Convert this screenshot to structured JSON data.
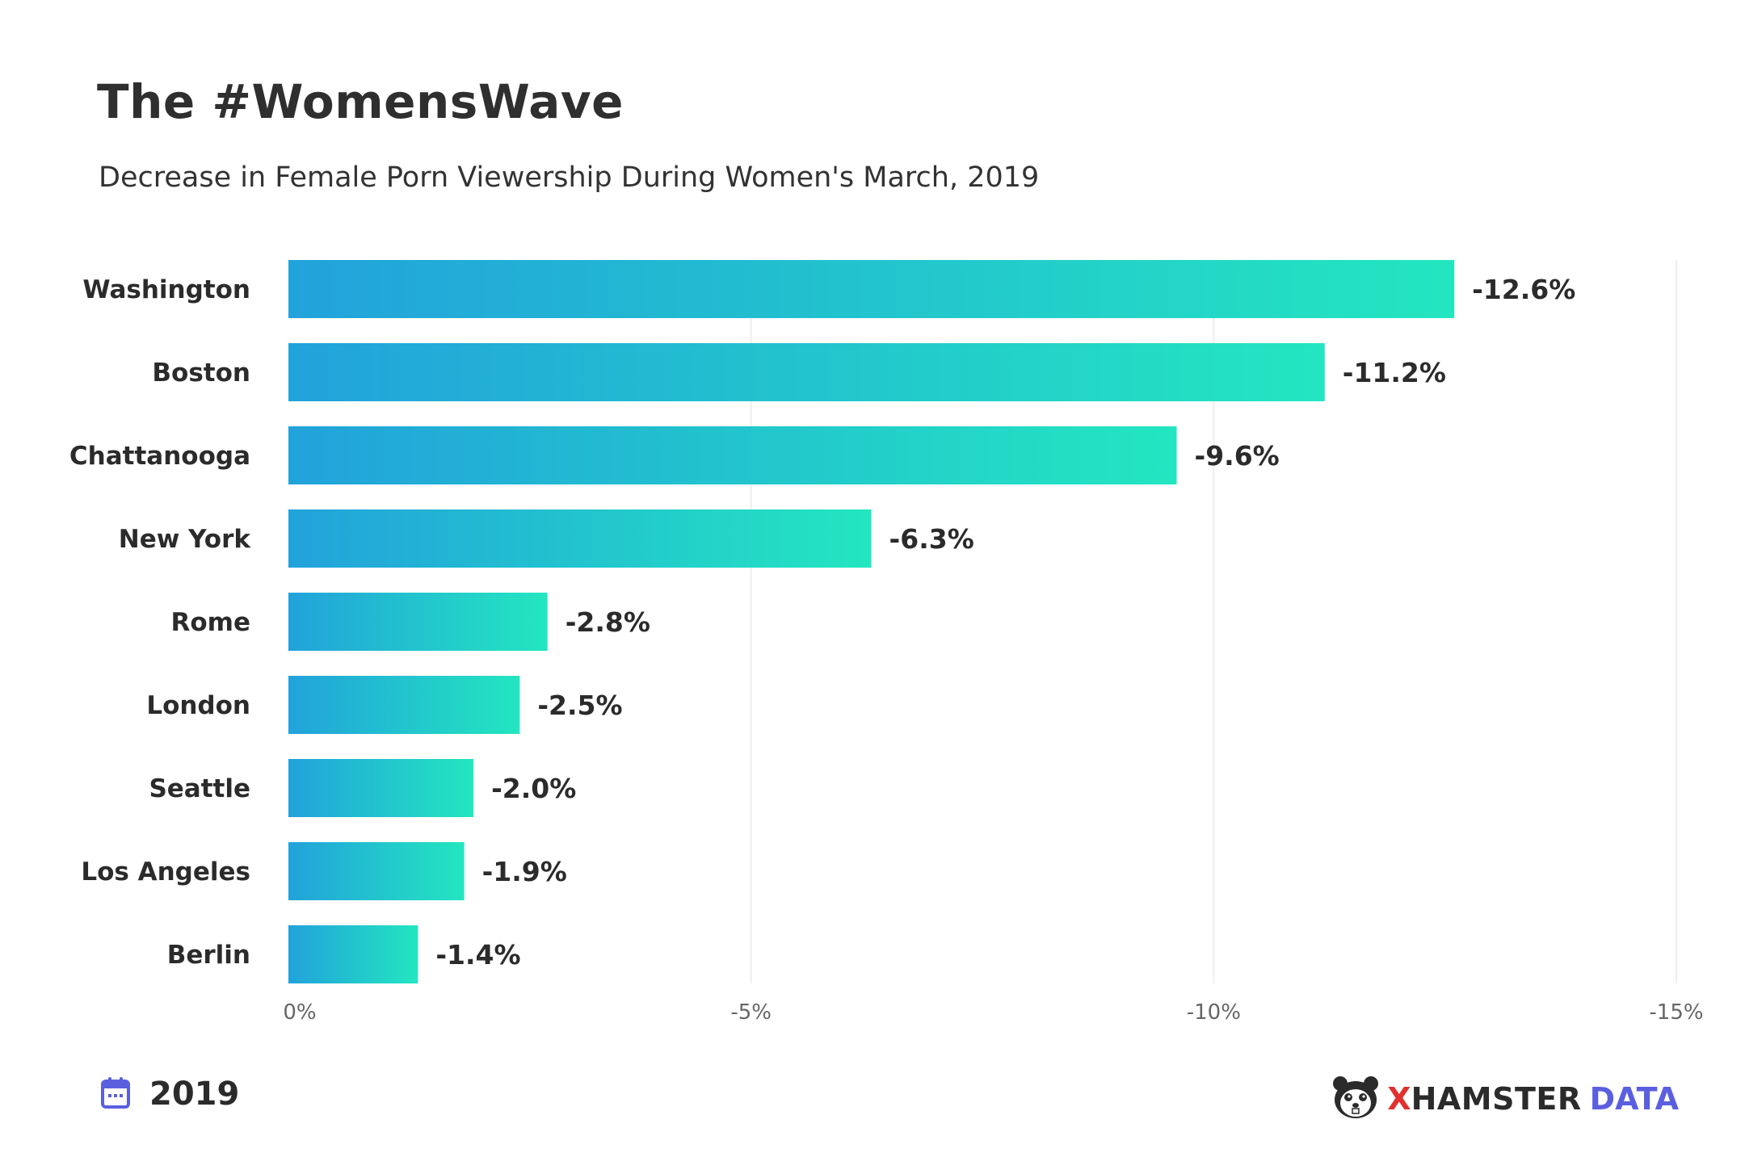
{
  "header": {
    "title": "The #WomensWave",
    "subtitle": "Decrease in Female Porn Viewership During Women's March, 2019"
  },
  "footer": {
    "year": "2019",
    "calendar_icon": "calendar-icon",
    "brand_x": "X",
    "brand_hamster": "HAMSTER",
    "brand_data": "DATA",
    "brand_logo_icon": "hamster-logo-icon"
  },
  "colors": {
    "bar_start": "#22a2db",
    "bar_end": "#23e6c0",
    "calendar": "#5a5fe0",
    "brand_red": "#e0312f",
    "brand_blue": "#5a5fe0"
  },
  "chart_data": {
    "type": "bar",
    "orientation": "horizontal",
    "categories": [
      "Washington",
      "Boston",
      "Chattanooga",
      "New York",
      "Rome",
      "London",
      "Seattle",
      "Los Angeles",
      "Berlin"
    ],
    "values": [
      -12.6,
      -11.2,
      -9.6,
      -6.3,
      -2.8,
      -2.5,
      -2.0,
      -1.9,
      -1.4
    ],
    "value_labels": [
      "-12.6%",
      "-11.2%",
      "-9.6%",
      "-6.3%",
      "-2.8%",
      "-2.5%",
      "-2.0%",
      "-1.9%",
      "-1.4%"
    ],
    "xlim": [
      0,
      -15
    ],
    "xticks": [
      0,
      -5,
      -10,
      -15
    ],
    "xtick_labels": [
      "0%",
      "-5%",
      "-10%",
      "-15%"
    ],
    "grid": true
  }
}
